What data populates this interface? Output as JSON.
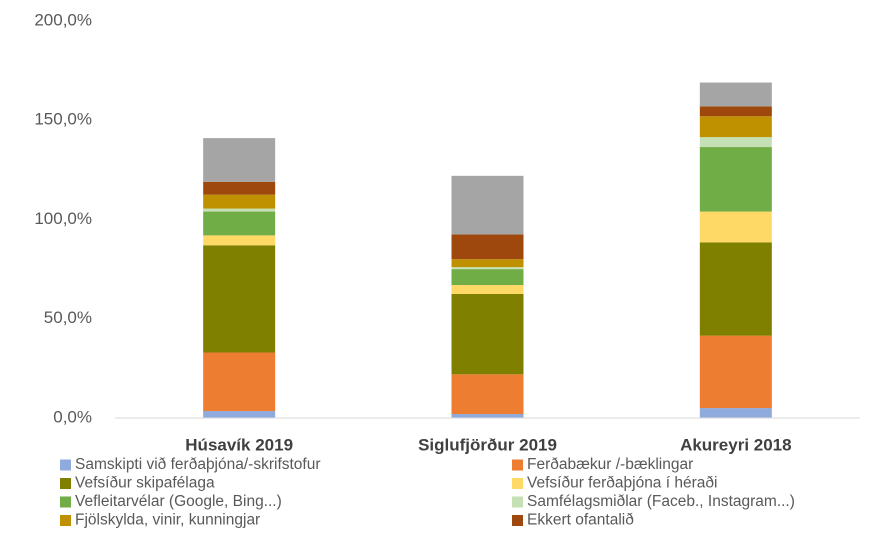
{
  "chart_data": {
    "type": "stacked_bar",
    "categories": [
      "Húsavík 2019",
      "Siglufjörður 2019",
      "Akureyri 2018"
    ],
    "ylim": [
      0,
      200
    ],
    "yticks": [
      {
        "value": 0,
        "label": "0,0%"
      },
      {
        "value": 50,
        "label": "50,0%"
      },
      {
        "value": 100,
        "label": "100,0%"
      },
      {
        "value": 150,
        "label": "150,0%"
      },
      {
        "value": 200,
        "label": "200,0%"
      }
    ],
    "grid": false,
    "series": [
      {
        "name": "Samskipti við ferðaþjóna/-skrifstofur",
        "color": "#8faadc",
        "values": [
          3.5,
          2,
          5
        ]
      },
      {
        "name": "Ferðabækur /-bæklingar",
        "color": "#ed7d31",
        "values": [
          29.5,
          20,
          36.5
        ]
      },
      {
        "name": "Vefsíður skipafélaga",
        "color": "#808000",
        "values": [
          54,
          40.5,
          47
        ]
      },
      {
        "name": "Vefsíður ferðaþjóna í héraði",
        "color": "#ffd966",
        "values": [
          5,
          4.5,
          15.5
        ]
      },
      {
        "name": "Vefleitarvélar (Google, Bing...)",
        "color": "#70ad47",
        "values": [
          12,
          8,
          32.5
        ]
      },
      {
        "name": "Samfélagsmiðlar (Faceb., Instagram...)",
        "color": "#c5e0b4",
        "values": [
          1.5,
          1,
          5
        ]
      },
      {
        "name": "Fjölskylda, vinir, kunningjar",
        "color": "#bf9000",
        "values": [
          7,
          4,
          10.5
        ]
      },
      {
        "name": "Ekkert ofantalið",
        "color": "#9e480e",
        "values": [
          6.5,
          12.5,
          5
        ]
      },
      {
        "color": "#a5a5a5",
        "values": [
          22,
          29.5,
          12
        ]
      }
    ]
  }
}
